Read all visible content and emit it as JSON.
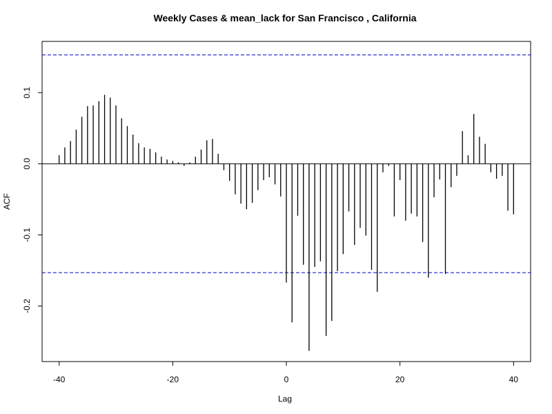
{
  "chart_data": {
    "type": "bar",
    "title": "Weekly Cases & mean_lack for San Francisco , California",
    "xlabel": "Lag",
    "ylabel": "ACF",
    "xlim": [
      -43,
      43
    ],
    "ylim": [
      -0.278,
      0.172
    ],
    "xticks": [
      -40,
      -20,
      0,
      20,
      40
    ],
    "yticks": [
      -0.2,
      -0.1,
      0.0,
      0.1
    ],
    "xtick_labels": [
      "-40",
      "-20",
      "0",
      "20",
      "40"
    ],
    "ytick_labels": [
      "-0.2",
      "-0.1",
      "0.0",
      "0.1"
    ],
    "ci_lines": [
      0.153,
      -0.153
    ],
    "colors": {
      "bars": "#000000",
      "ci": "#0000cc",
      "zero": "#000000"
    },
    "lags": [
      -40,
      -39,
      -38,
      -37,
      -36,
      -35,
      -34,
      -33,
      -32,
      -31,
      -30,
      -29,
      -28,
      -27,
      -26,
      -25,
      -24,
      -23,
      -22,
      -21,
      -20,
      -19,
      -18,
      -17,
      -16,
      -15,
      -14,
      -13,
      -12,
      -11,
      -10,
      -9,
      -8,
      -7,
      -6,
      -5,
      -4,
      -3,
      -2,
      -1,
      0,
      1,
      2,
      3,
      4,
      5,
      6,
      7,
      8,
      9,
      10,
      11,
      12,
      13,
      14,
      15,
      16,
      17,
      18,
      19,
      20,
      21,
      22,
      23,
      24,
      25,
      26,
      27,
      28,
      29,
      30,
      31,
      32,
      33,
      34,
      35,
      36,
      37,
      38,
      39,
      40
    ],
    "values": [
      0.012,
      0.023,
      0.032,
      0.048,
      0.066,
      0.081,
      0.082,
      0.088,
      0.097,
      0.093,
      0.082,
      0.064,
      0.053,
      0.041,
      0.029,
      0.023,
      0.021,
      0.016,
      0.01,
      0.006,
      0.004,
      0.002,
      -0.003,
      0.002,
      0.01,
      0.02,
      0.033,
      0.035,
      0.014,
      -0.009,
      -0.024,
      -0.043,
      -0.056,
      -0.064,
      -0.055,
      -0.037,
      -0.023,
      -0.019,
      -0.029,
      -0.046,
      -0.167,
      -0.223,
      -0.073,
      -0.142,
      -0.263,
      -0.145,
      -0.137,
      -0.242,
      -0.221,
      -0.151,
      -0.127,
      -0.067,
      -0.114,
      -0.09,
      -0.101,
      -0.149,
      -0.18,
      -0.012,
      -0.003,
      -0.074,
      -0.023,
      -0.08,
      -0.07,
      -0.074,
      -0.11,
      -0.16,
      -0.047,
      -0.022,
      -0.155,
      -0.033,
      -0.017,
      0.046,
      0.012,
      0.07,
      0.038,
      0.028,
      -0.012,
      -0.021,
      -0.017,
      -0.066,
      -0.071
    ]
  }
}
